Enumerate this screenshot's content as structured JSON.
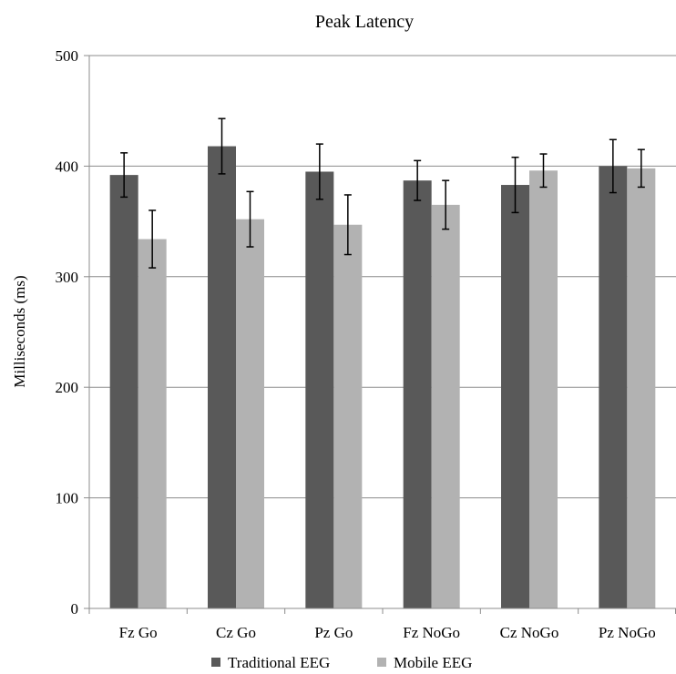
{
  "chart_data": {
    "type": "bar",
    "title": "Peak Latency",
    "xlabel": "",
    "ylabel": "Milliseconds (ms)",
    "ylim": [
      0,
      500
    ],
    "yticks": [
      0,
      100,
      200,
      300,
      400,
      500
    ],
    "grid": true,
    "legend_position": "bottom",
    "categories": [
      "Fz Go",
      "Cz Go",
      "Pz Go",
      "Fz NoGo",
      "Cz NoGo",
      "Pz NoGo"
    ],
    "series": [
      {
        "name": "Traditional EEG",
        "color": "#595959",
        "values": [
          392,
          418,
          395,
          387,
          383,
          400
        ],
        "error": [
          20,
          25,
          25,
          18,
          25,
          24
        ]
      },
      {
        "name": "Mobile EEG",
        "color": "#b2b2b2",
        "values": [
          334,
          352,
          347,
          365,
          396,
          398
        ],
        "error": [
          26,
          25,
          27,
          22,
          15,
          17
        ]
      }
    ]
  }
}
